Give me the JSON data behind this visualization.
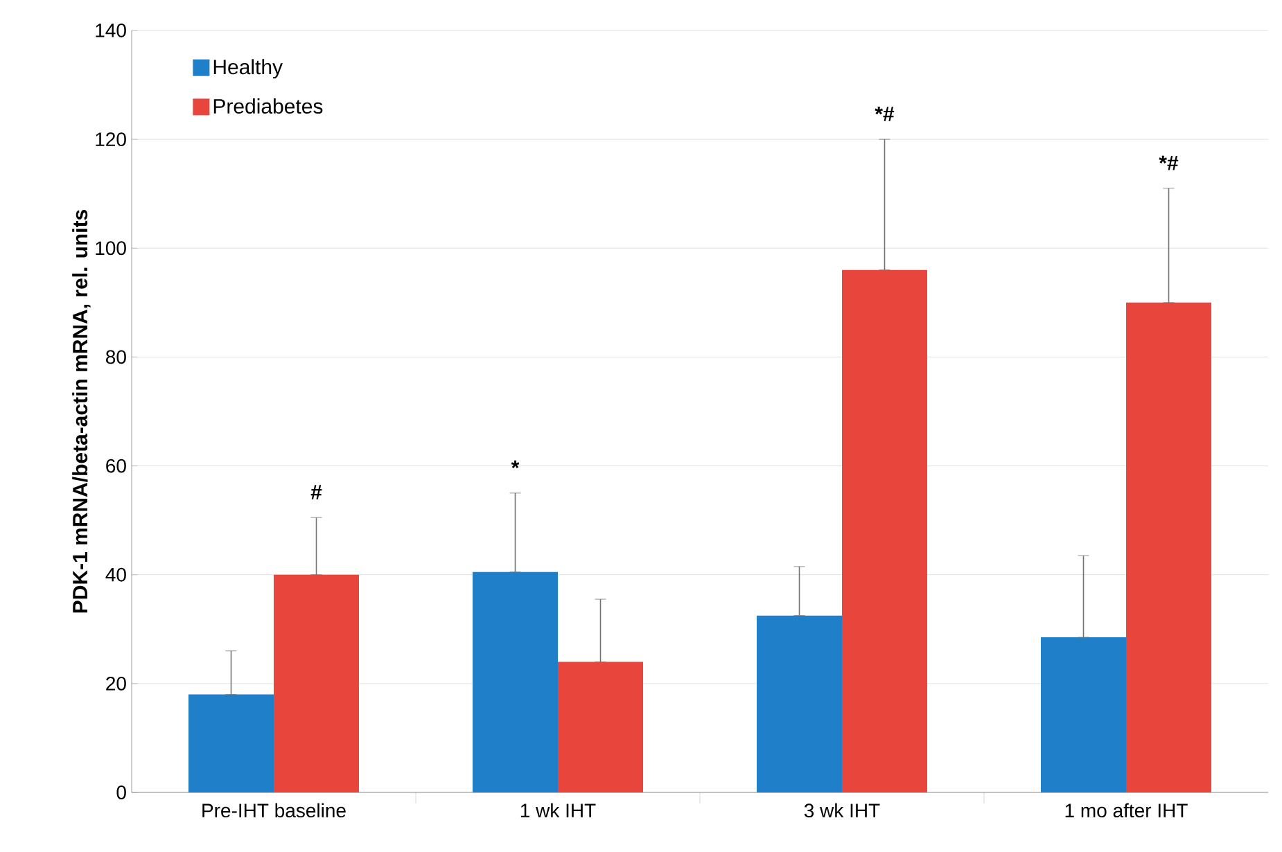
{
  "chart_data": {
    "type": "bar",
    "ylabel": "PDK-1 mRNA/beta-actin mRNA, rel. units",
    "categories": [
      "Pre-IHT baseline",
      "1 wk IHT",
      "3 wk IHT",
      "1 mo after IHT"
    ],
    "series": [
      {
        "name": "Healthy",
        "color": "#1f7fc8",
        "values": [
          18,
          40.5,
          32.5,
          28.5
        ],
        "errors": [
          [
            18,
            26
          ],
          [
            40.5,
            55
          ],
          [
            32.5,
            41.5
          ],
          [
            28.5,
            43.5
          ]
        ]
      },
      {
        "name": "Prediabetes",
        "color": "#e8453c",
        "values": [
          40,
          24,
          96,
          90
        ],
        "errors": [
          [
            40,
            50.5
          ],
          [
            24,
            35.5
          ],
          [
            96,
            120
          ],
          [
            90,
            111
          ]
        ]
      }
    ],
    "ylim": [
      0,
      140
    ],
    "yticks": [
      0,
      20,
      40,
      60,
      80,
      100,
      120,
      140
    ],
    "grid": "y",
    "legend": "top left",
    "annotations": [
      "#",
      "*",
      "*#",
      "*#"
    ]
  }
}
